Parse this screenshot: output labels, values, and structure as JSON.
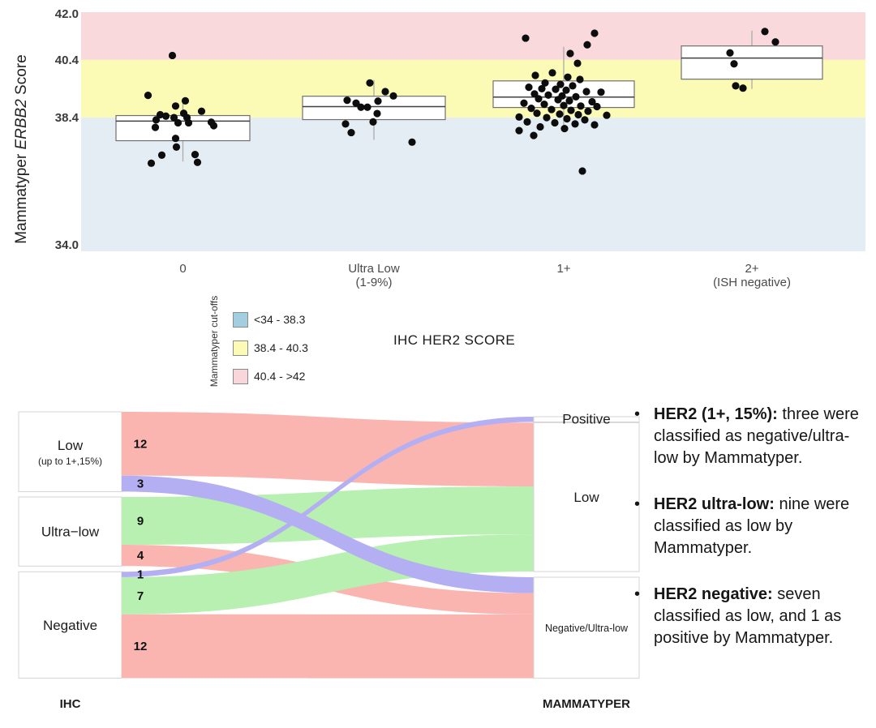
{
  "figure": {
    "background": "#ffffff"
  },
  "chart_data": [
    {
      "type": "boxplot-jitter",
      "xlabel": "IHC HER2 SCORE",
      "ylabel": "Mammatyper ERBB2 Score",
      "ylabel_parts": {
        "prefix": "Mammatyper ",
        "gene": "ERBB2",
        "suffix": " Score"
      },
      "ylim": [
        34,
        42
      ],
      "grid": false,
      "yticks": [
        {
          "value": 42.0,
          "label": "42.0"
        },
        {
          "value": 40.4,
          "label": "40.4"
        },
        {
          "value": 38.4,
          "label": "38.4"
        },
        {
          "value": 34.0,
          "label": "34.0"
        }
      ],
      "bands": [
        {
          "from": 40.4,
          "to": 42.0,
          "color": "#F9D9DC"
        },
        {
          "from": 38.4,
          "to": 40.4,
          "color": "#FBFBB5"
        },
        {
          "from": 34.0,
          "to": 38.4,
          "color": "#E4EDF4"
        }
      ],
      "legend": {
        "title": "Mammatyper cut-offs",
        "position": "below-left",
        "items": [
          {
            "label": "<34 - 38.3",
            "color": "#A2CEDF"
          },
          {
            "label": "38.4 - 40.3",
            "color": "#FBFBB5"
          },
          {
            "label": "40.4 - >42",
            "color": "#F9D6DA"
          }
        ]
      },
      "groups": [
        {
          "label": "0",
          "sublabel": "",
          "box": {
            "q1": 37.6,
            "median": 38.28,
            "q3": 38.47,
            "whisker_low": 36.88,
            "whisker_high": 38.92
          },
          "points": [
            [
              -13,
              40.55
            ],
            [
              -43,
              39.17
            ],
            [
              3,
              38.98
            ],
            [
              -9,
              38.8
            ],
            [
              23,
              38.62
            ],
            [
              -28,
              38.5
            ],
            [
              1,
              38.55
            ],
            [
              -21,
              38.45
            ],
            [
              -11,
              38.4
            ],
            [
              5,
              38.4
            ],
            [
              -33,
              38.32
            ],
            [
              35,
              38.24
            ],
            [
              -6,
              38.22
            ],
            [
              7,
              38.22
            ],
            [
              38,
              38.12
            ],
            [
              -34,
              38.06
            ],
            [
              -9,
              37.68
            ],
            [
              -8,
              37.38
            ],
            [
              15,
              37.12
            ],
            [
              -26,
              37.1
            ],
            [
              18,
              36.85
            ],
            [
              -39,
              36.82
            ]
          ]
        },
        {
          "label": "Ultra Low",
          "sublabel": "(1-9%)",
          "box": {
            "q1": 38.33,
            "median": 38.78,
            "q3": 39.14,
            "whisker_low": 37.63,
            "whisker_high": 39.7
          },
          "points": [
            [
              -5,
              39.6
            ],
            [
              14,
              39.3
            ],
            [
              24,
              39.15
            ],
            [
              -33,
              39.0
            ],
            [
              5,
              38.97
            ],
            [
              -16,
              38.76
            ],
            [
              -8,
              38.76
            ],
            [
              -22,
              38.9
            ],
            [
              4,
              38.54
            ],
            [
              -1,
              38.25
            ],
            [
              -35,
              38.18
            ],
            [
              -28,
              37.88
            ],
            [
              47,
              37.55
            ]
          ]
        },
        {
          "label": "1+",
          "sublabel": "",
          "box": {
            "q1": 38.75,
            "median": 39.11,
            "q3": 39.67,
            "whisker_low": 38.13,
            "whisker_high": 40.85
          },
          "points": [
            [
              -47,
              41.15
            ],
            [
              38,
              41.32
            ],
            [
              29,
              40.92
            ],
            [
              8,
              40.62
            ],
            [
              17,
              40.28
            ],
            [
              -14,
              39.95
            ],
            [
              -35,
              39.86
            ],
            [
              5,
              39.8
            ],
            [
              20,
              39.72
            ],
            [
              -23,
              39.6
            ],
            [
              -4,
              39.55
            ],
            [
              11,
              39.5
            ],
            [
              -43,
              39.45
            ],
            [
              -27,
              39.4
            ],
            [
              -10,
              39.38
            ],
            [
              3,
              39.35
            ],
            [
              28,
              39.3
            ],
            [
              46,
              39.28
            ],
            [
              -36,
              39.22
            ],
            [
              -19,
              39.18
            ],
            [
              -2,
              39.15
            ],
            [
              15,
              39.12
            ],
            [
              -31,
              39.05
            ],
            [
              -7,
              39.02
            ],
            [
              7,
              38.98
            ],
            [
              35,
              38.95
            ],
            [
              -49,
              38.9
            ],
            [
              -24,
              38.86
            ],
            [
              0,
              38.82
            ],
            [
              21,
              38.8
            ],
            [
              41,
              38.78
            ],
            [
              -40,
              38.72
            ],
            [
              -15,
              38.68
            ],
            [
              9,
              38.65
            ],
            [
              30,
              38.62
            ],
            [
              -33,
              38.55
            ],
            [
              -5,
              38.52
            ],
            [
              18,
              38.5
            ],
            [
              53,
              38.48
            ],
            [
              -55,
              38.42
            ],
            [
              -21,
              38.4
            ],
            [
              4,
              38.36
            ],
            [
              26,
              38.32
            ],
            [
              -45,
              38.25
            ],
            [
              -11,
              38.22
            ],
            [
              14,
              38.18
            ],
            [
              38,
              38.15
            ],
            [
              -29,
              38.08
            ],
            [
              1,
              38.02
            ],
            [
              -55,
              37.95
            ],
            [
              -37,
              37.78
            ],
            [
              23,
              36.55
            ]
          ]
        },
        {
          "label": "2+",
          "sublabel": "(ISH negative)",
          "box": {
            "q1": 39.73,
            "median": 40.46,
            "q3": 40.88,
            "whisker_low": 39.39,
            "whisker_high": 41.41
          },
          "points": [
            [
              16,
              41.38
            ],
            [
              29,
              41.02
            ],
            [
              -27,
              40.64
            ],
            [
              -22,
              40.26
            ],
            [
              -20,
              39.5
            ],
            [
              -11,
              39.42
            ]
          ]
        }
      ]
    },
    {
      "type": "alluvial",
      "axis_labels": {
        "left": "IHC",
        "right": "MAMMATYPER"
      },
      "left_strata": [
        {
          "id": "low",
          "label": "Low",
          "sublabel": "(up to 1+,15%)",
          "total": 15
        },
        {
          "id": "ultralow",
          "label": "Ultra−low",
          "sublabel": "",
          "total": 13
        },
        {
          "id": "negative",
          "label": "Negative",
          "sublabel": "",
          "total": 20
        }
      ],
      "right_strata": [
        {
          "id": "positive",
          "label": "Positive",
          "total": 1
        },
        {
          "id": "low",
          "label": "Low",
          "total": 28
        },
        {
          "id": "nul",
          "label": "Negative/Ultra-low",
          "total": 19
        }
      ],
      "flows": [
        {
          "from": "low",
          "to": "low",
          "value": 12,
          "color": "#FBB5B1",
          "z": 0
        },
        {
          "from": "low",
          "to": "nul",
          "value": 3,
          "color": "#B4AFF2",
          "z": 2
        },
        {
          "from": "ultralow",
          "to": "low",
          "value": 9,
          "color": "#B7F0B1",
          "z": 1
        },
        {
          "from": "ultralow",
          "to": "nul",
          "value": 4,
          "color": "#FBB5B1",
          "z": 0
        },
        {
          "from": "negative",
          "to": "positive",
          "value": 1,
          "color": "#B4AFF2",
          "z": 2
        },
        {
          "from": "negative",
          "to": "low",
          "value": 7,
          "color": "#B7F0B1",
          "z": 1
        },
        {
          "from": "negative",
          "to": "nul",
          "value": 12,
          "color": "#FBB5B1",
          "z": 0
        }
      ]
    }
  ],
  "notes": {
    "bullet_char": "•",
    "items": [
      {
        "lead": "HER2 (1+, 15%):",
        "rest": " three were classified as negative/ultra-low by Mammatyper."
      },
      {
        "lead": "HER2 ultra-low:",
        "rest": " nine were classified as low by Mammatyper."
      },
      {
        "lead": "HER2 negative:",
        "rest": " seven classified as low, and 1 as positive by Mammatyper."
      }
    ]
  }
}
